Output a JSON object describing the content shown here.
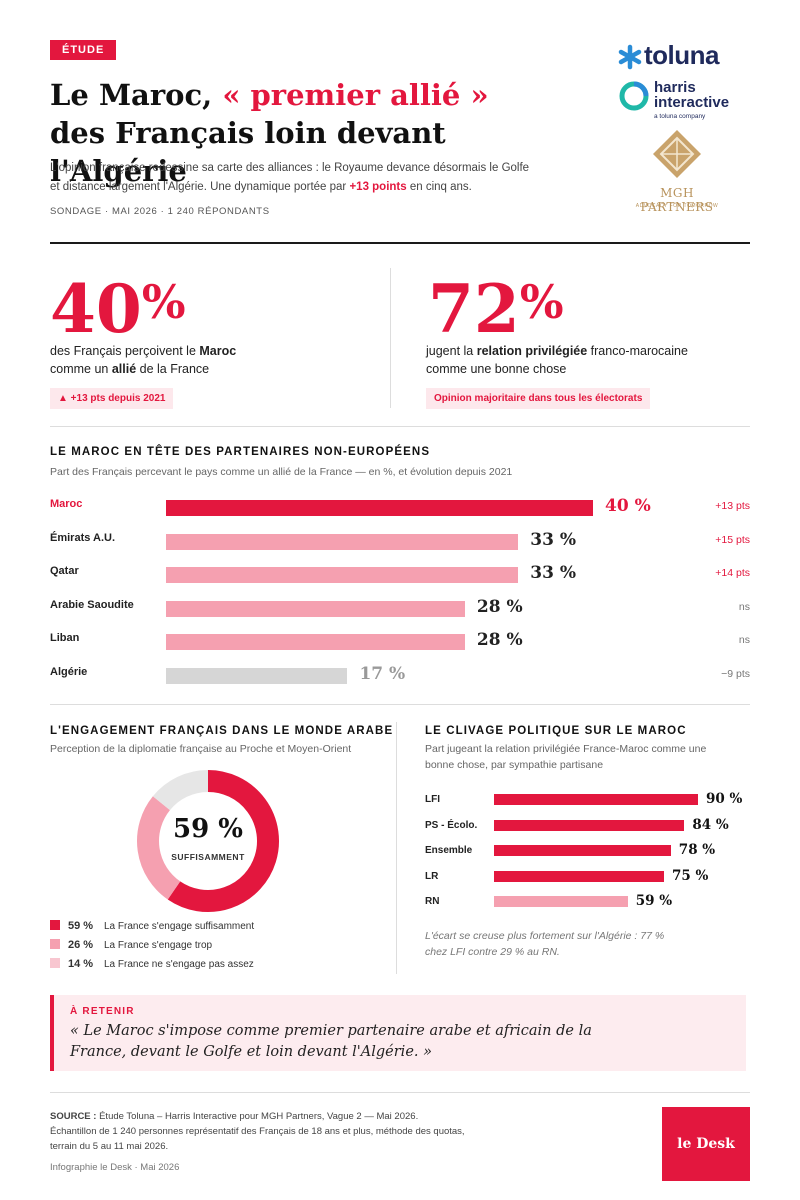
{
  "header": {
    "tag": "ÉTUDE",
    "title_pre": "Le Maroc, ",
    "title_red": "« premier allié »",
    "title_line2": "des Français loin devant l'Algérie",
    "lede_part1": "L'opinion française redessine sa carte des alliances : le Royaume devance désormais le Golfe et distance largement l'Algérie. Une dynamique portée par ",
    "lede_bold": "+13 points",
    "lede_part2": " en cinq ans.",
    "meta": "SONDAGE · MAI 2026 · 1 240 RÉPONDANTS"
  },
  "logos": {
    "toluna": "toluna",
    "harris_line1": "harris",
    "harris_line2": "interactive",
    "harris_sub": "a toluna company",
    "mgh": "MGH PARTNERS",
    "mgh_sub": "ADVOCACY FOR TOMORROW"
  },
  "kpi": [
    {
      "value": "40",
      "unit": "%",
      "text_pre": "des Français perçoivent le ",
      "text_b1": "Maroc",
      "text_mid": " comme un ",
      "text_b2": "allié",
      "text_post": " de la France",
      "pill": "▲ +13 pts depuis 2021"
    },
    {
      "value": "72",
      "unit": "%",
      "text_pre": "jugent la ",
      "text_b1": "relation privilégiée",
      "text_mid": " franco-marocaine comme une bonne chose",
      "pill": "Opinion majoritaire dans tous les électorats"
    }
  ],
  "partners": {
    "heading": "LE MAROC EN TÊTE DES PARTENAIRES NON-EUROPÉENS",
    "subheading": "Part des Français percevant le pays comme un allié de la France — en %, et évolution depuis 2021"
  },
  "engagement": {
    "heading": "L'ENGAGEMENT FRANÇAIS DANS LE MONDE ARABE",
    "subheading": "Perception de la diplomatie française au Proche et Moyen-Orient",
    "center_value": "59 %",
    "center_label": "SUFFISAMMENT"
  },
  "clivage": {
    "heading": "LE CLIVAGE POLITIQUE SUR LE MAROC",
    "subheading": "Part jugeant la relation privilégiée France-Maroc comme une bonne chose, par sympathie partisane",
    "note": "L'écart se creuse plus fortement sur l'Algérie : 77 % chez LFI contre 29 % au RN."
  },
  "retenir": {
    "label": "À RETENIR",
    "quote": "« Le Maroc s'impose comme premier partenaire arabe et africain de la France, devant le Golfe et loin devant l'Algérie. »"
  },
  "footer": {
    "source_label": "SOURCE :",
    "source_text": " Étude Toluna – Harris Interactive pour MGH Partners, Vague 2 — Mai 2026.",
    "line2": "Échantillon de 1 240 personnes représentatif des Français de 18 ans et plus, méthode des quotas,",
    "line3": "terrain du 5 au 11 mai 2026.",
    "credit": "Infographie le Desk · Mai 2026",
    "brand": "le Desk"
  },
  "colors": {
    "accent": "#e3173e",
    "light": "#f5a0b0",
    "gray": "#d6d6d6",
    "lightest": "#f8c6d0"
  },
  "chart_data": [
    {
      "type": "bar",
      "orientation": "horizontal",
      "categories": [
        "Maroc",
        "Émirats A.U.",
        "Qatar",
        "Arabie Saoudite",
        "Liban",
        "Algérie"
      ],
      "values": [
        40,
        33,
        33,
        28,
        28,
        17
      ],
      "value_labels": [
        "40 %",
        "33 %",
        "33 %",
        "28 %",
        "28 %",
        "17 %"
      ],
      "deltas": [
        "+13 pts",
        "+15 pts",
        "+14 pts",
        "ns",
        "ns",
        "−9 pts"
      ],
      "bar_colors": [
        "#e3173e",
        "#f5a0b0",
        "#f5a0b0",
        "#f5a0b0",
        "#f5a0b0",
        "#d6d6d6"
      ],
      "delta_colors": [
        "#e3173e",
        "#e3173e",
        "#e3173e",
        "#777777",
        "#777777",
        "#777777"
      ],
      "label_colors": [
        "#e3173e",
        "#222222",
        "#222222",
        "#222222",
        "#222222",
        "#222222"
      ],
      "value_colors": [
        "#e3173e",
        "#222222",
        "#222222",
        "#222222",
        "#222222",
        "#999999"
      ],
      "xlim": [
        0,
        50
      ]
    },
    {
      "type": "pie",
      "donut": true,
      "labels": [
        "La France s'engage suffisamment",
        "La France s'engage trop",
        "La France ne s'engage pas assez"
      ],
      "values": [
        59,
        26,
        14
      ],
      "value_labels": [
        "59 %",
        "26 %",
        "14 %"
      ],
      "colors": [
        "#e3173e",
        "#f5a0b0",
        "#e6e6e6"
      ],
      "legend_colors": [
        "#e3173e",
        "#f5a0b0",
        "#f8c6d0"
      ]
    },
    {
      "type": "bar",
      "orientation": "horizontal",
      "categories": [
        "LFI",
        "PS - Écolo.",
        "Ensemble",
        "LR",
        "RN"
      ],
      "values": [
        90,
        84,
        78,
        75,
        59
      ],
      "value_labels": [
        "90 %",
        "84 %",
        "78 %",
        "75 %",
        "59 %"
      ],
      "bar_colors": [
        "#e3173e",
        "#e3173e",
        "#e3173e",
        "#e3173e",
        "#f5a0b0"
      ],
      "xlim": [
        0,
        100
      ]
    }
  ]
}
